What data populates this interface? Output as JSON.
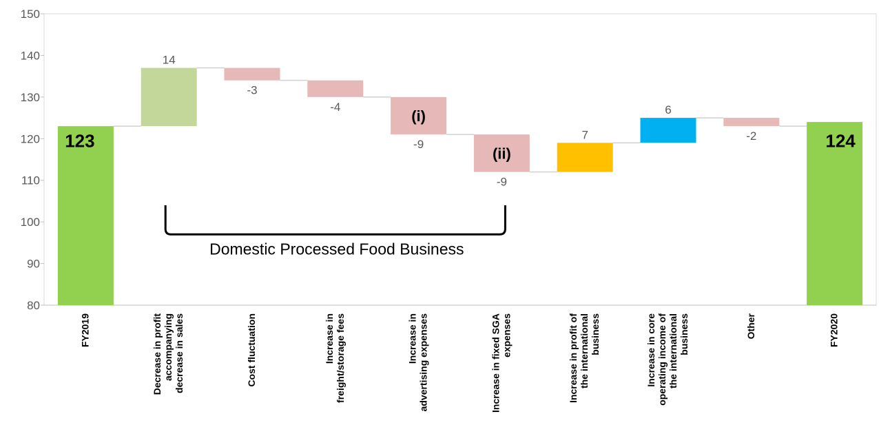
{
  "chart_data": {
    "type": "waterfall",
    "ylim": [
      80,
      150
    ],
    "yticks": [
      80,
      90,
      100,
      110,
      120,
      130,
      140,
      150
    ],
    "grid": false,
    "categories": [
      [
        "FY2019"
      ],
      [
        "Decrease in profit",
        "accompanying",
        "decrease in sales"
      ],
      [
        "Cost fluctuation"
      ],
      [
        "Increase in",
        "freight/storage fees"
      ],
      [
        "Increase in",
        "advertising expenses"
      ],
      [
        "Increase in fixed SGA",
        "expenses"
      ],
      [
        "Increase in profit of",
        "the international",
        "business"
      ],
      [
        "Increase in core",
        "operating income of",
        "the international",
        "business"
      ],
      [
        "Other"
      ],
      [
        "FY2020"
      ]
    ],
    "bars": [
      {
        "kind": "total",
        "value": 123,
        "label": "123",
        "color": "#92d050"
      },
      {
        "kind": "delta",
        "value": 14,
        "label": "14",
        "color": "#c4d79b"
      },
      {
        "kind": "delta",
        "value": -3,
        "label": "-3",
        "color": "#e6b8b7"
      },
      {
        "kind": "delta",
        "value": -4,
        "label": "-4",
        "color": "#e6b8b7"
      },
      {
        "kind": "delta",
        "value": -9,
        "label": "-9",
        "color": "#e6b8b7",
        "marker": "(i)"
      },
      {
        "kind": "delta",
        "value": -9,
        "label": "-9",
        "color": "#e6b8b7",
        "marker": "(ii)"
      },
      {
        "kind": "delta",
        "value": 7,
        "label": "7",
        "color": "#ffc000"
      },
      {
        "kind": "delta",
        "value": 6,
        "label": "6",
        "color": "#00b0f0"
      },
      {
        "kind": "delta",
        "value": -2,
        "label": "-2",
        "color": "#e6b8b7"
      },
      {
        "kind": "total",
        "value": 124,
        "label": "124",
        "color": "#92d050"
      }
    ],
    "annotation": {
      "text": "Domestic Processed Food Business",
      "span": [
        1,
        5
      ]
    }
  }
}
